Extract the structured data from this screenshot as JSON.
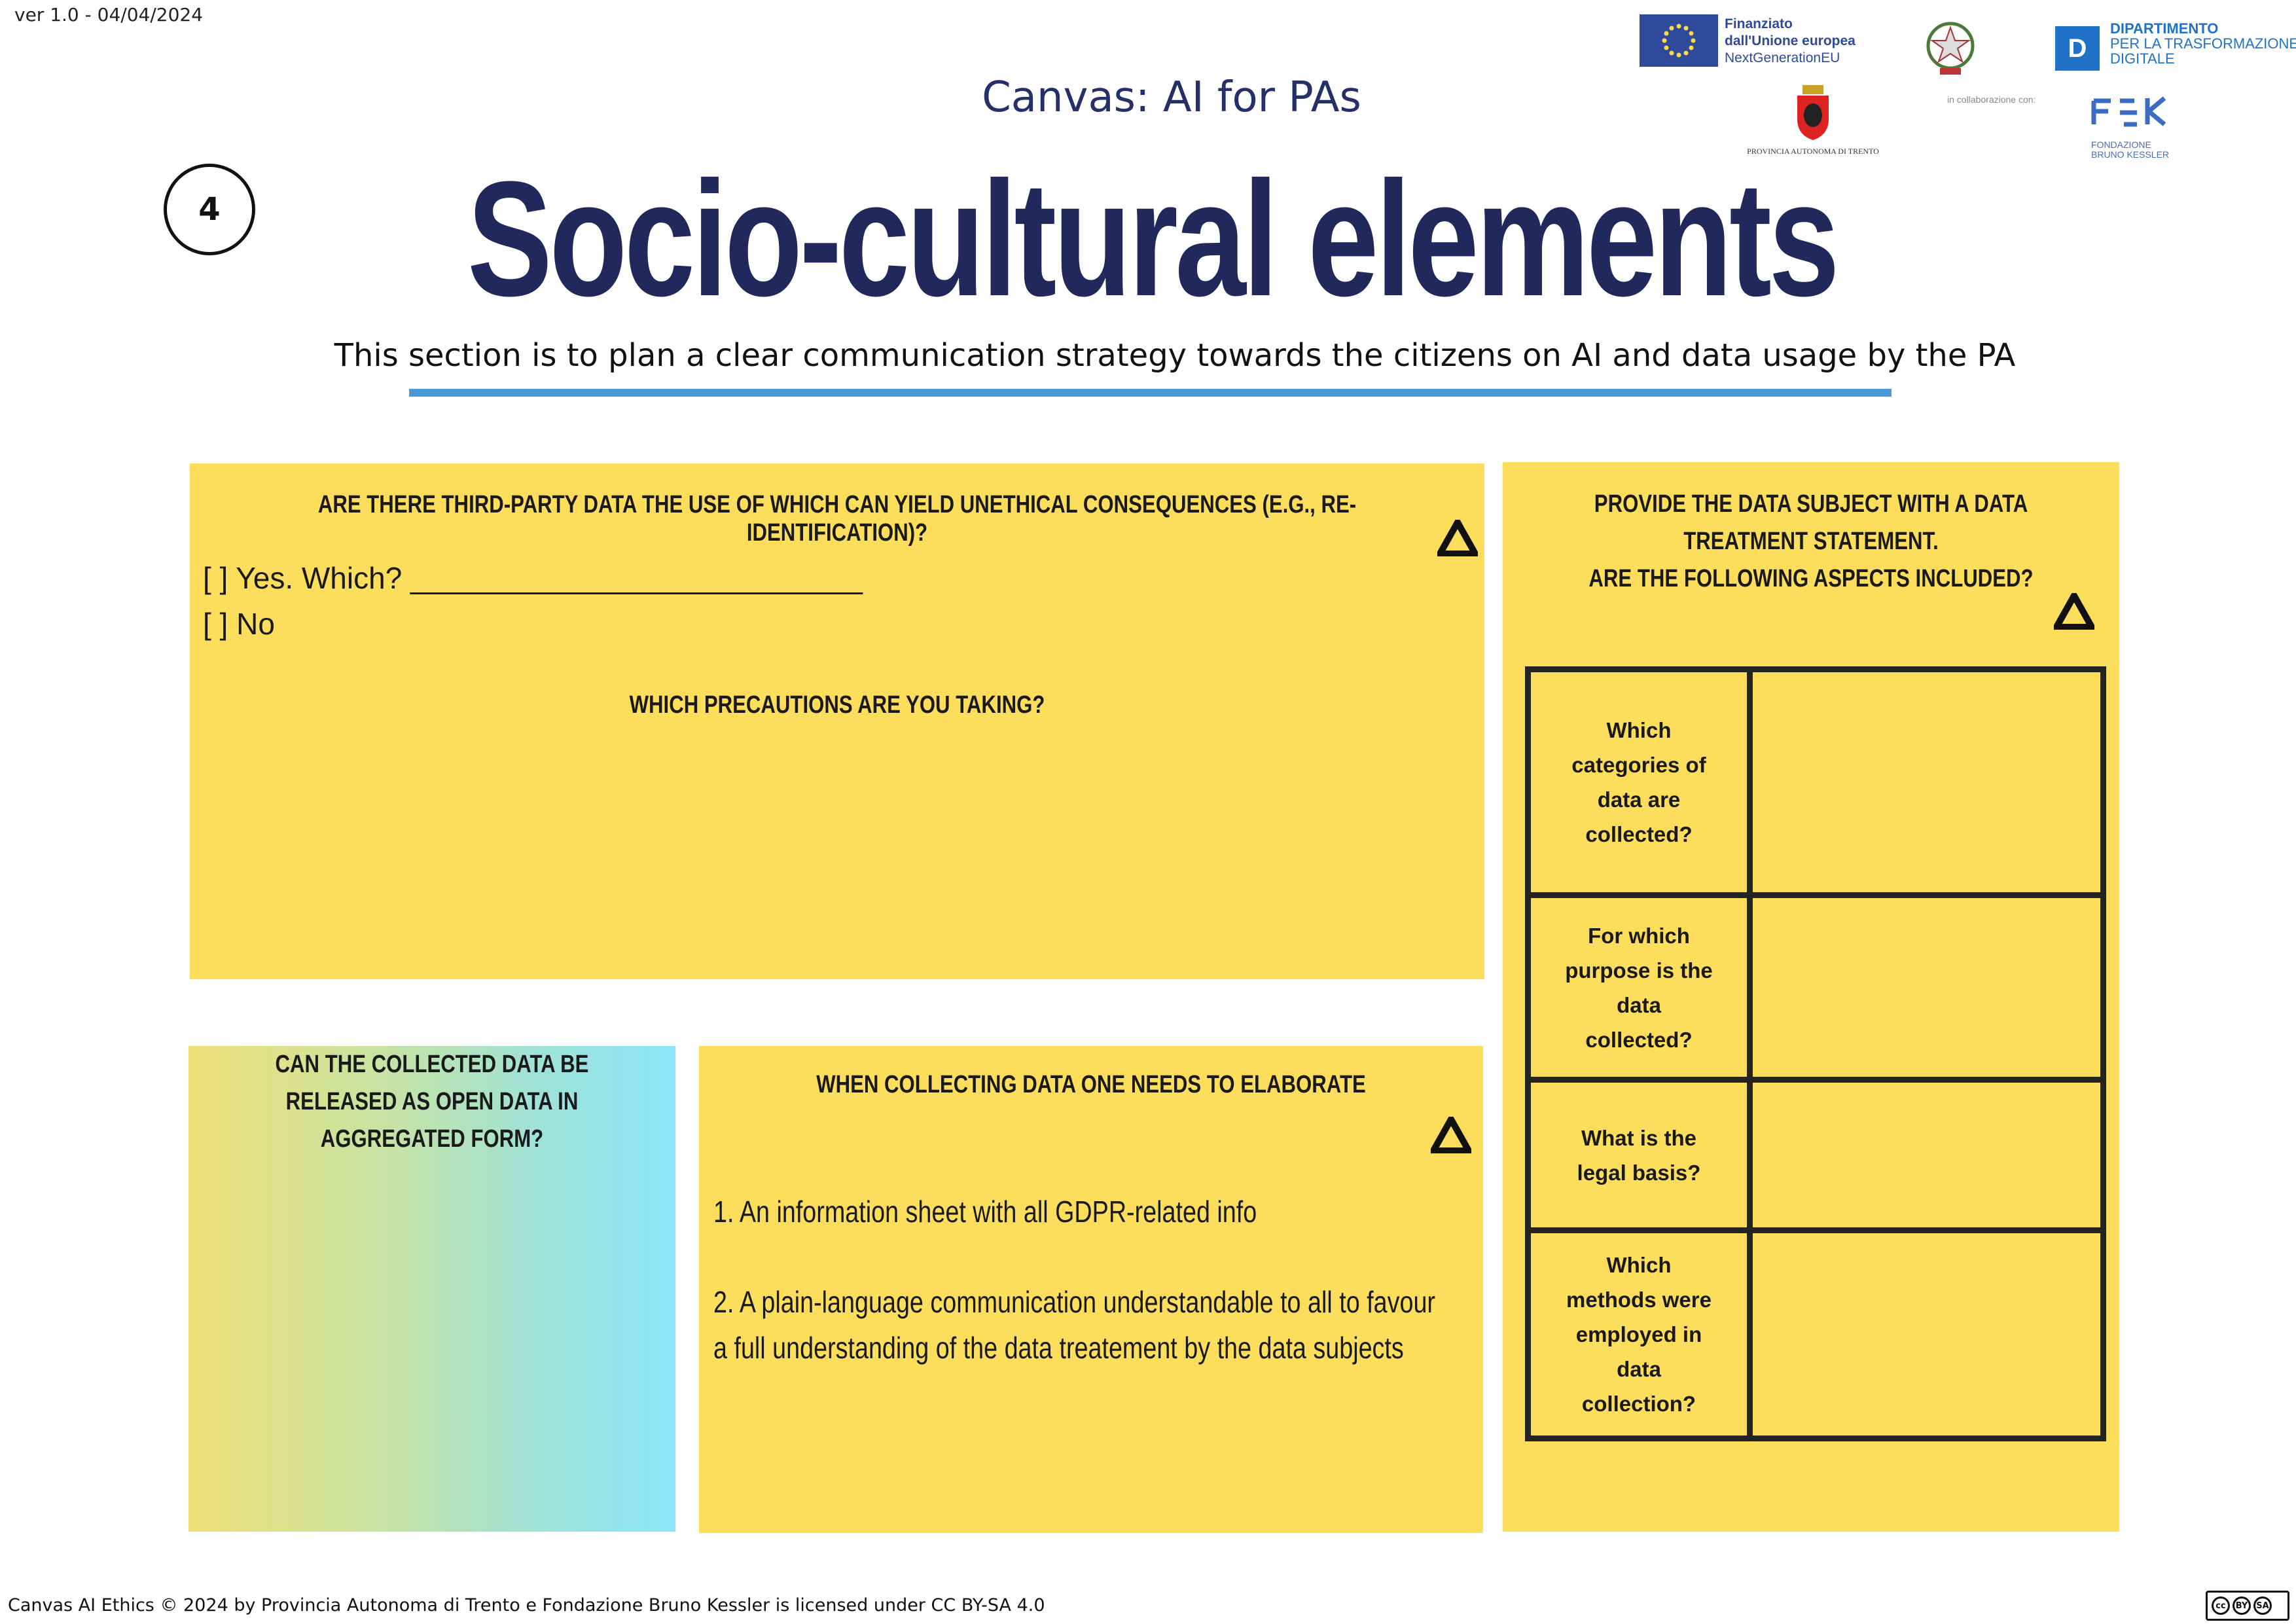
{
  "header": {
    "version": "ver 1.0 - 04/04/2024",
    "subtitle": "Canvas: AI for PAs",
    "step_number": "4",
    "title": "Socio-cultural elements",
    "lead": "This section is to plan a clear communication strategy towards the citizens on AI and data usage by the PA",
    "rule_color": "#4a9ad6"
  },
  "logos": {
    "eu": [
      "Finanziato",
      "dall'Unione europea",
      "NextGenerationEU"
    ],
    "dtd": [
      "DIPARTIMENTO",
      "PER LA TRASFORMAZIONE",
      "DIGITALE"
    ],
    "trento": "PROVINCIA AUTONOMA DI TRENTO",
    "collab": "in collaborazione con:",
    "fbk": [
      "FONDAZIONE",
      "BRUNO KESSLER"
    ]
  },
  "panel_third_party": {
    "question": "ARE THERE THIRD-PARTY DATA THE USE OF WHICH CAN YIELD UNETHICAL CONSEQUENCES (E.G., RE-IDENTIFICATION)?",
    "option_yes": "[ ] Yes. Which? ___________________________",
    "option_no": "[ ] No",
    "question2": "WHICH PRECAUTIONS ARE YOU TAKING?"
  },
  "panel_data_treatment": {
    "question_line1": "PROVIDE THE DATA SUBJECT WITH A DATA TREATMENT STATEMENT.",
    "question_line2": "ARE THE FOLLOWING ASPECTS INCLUDED?",
    "rows": [
      "Which categories of data are collected?",
      "For which purpose is the data collected?",
      "What is the legal basis?",
      "Which methods were employed in data collection?"
    ]
  },
  "panel_open_data": {
    "question": "CAN THE COLLECTED DATA BE RELEASED AS OPEN DATA IN AGGREGATED FORM?"
  },
  "panel_collecting": {
    "question": "WHEN COLLECTING DATA ONE NEEDS TO ELABORATE",
    "item1": "1. An information sheet with all GDPR-related info",
    "item2_line1": "2. A plain-language communication understandable to all to favour",
    "item2_line2": "a full understanding of the data treatement by the data subjects"
  },
  "colors": {
    "panel_yellow": "#fddd5c",
    "title_navy": "#21295c",
    "gradient_start": "#efe078",
    "gradient_end": "#8ae6f9"
  },
  "footer": {
    "license": "Canvas AI Ethics © 2024 by Provincia Autonoma di Trento e Fondazione Bruno Kessler is licensed under CC BY-SA 4.0",
    "badge": [
      "cc",
      "BY",
      "SA"
    ]
  },
  "icons": [
    "warning-triangle-icon",
    "eu-flag-icon",
    "republic-emblem-icon",
    "trento-crest-icon",
    "fbk-logo-icon",
    "cc-license-icon"
  ]
}
